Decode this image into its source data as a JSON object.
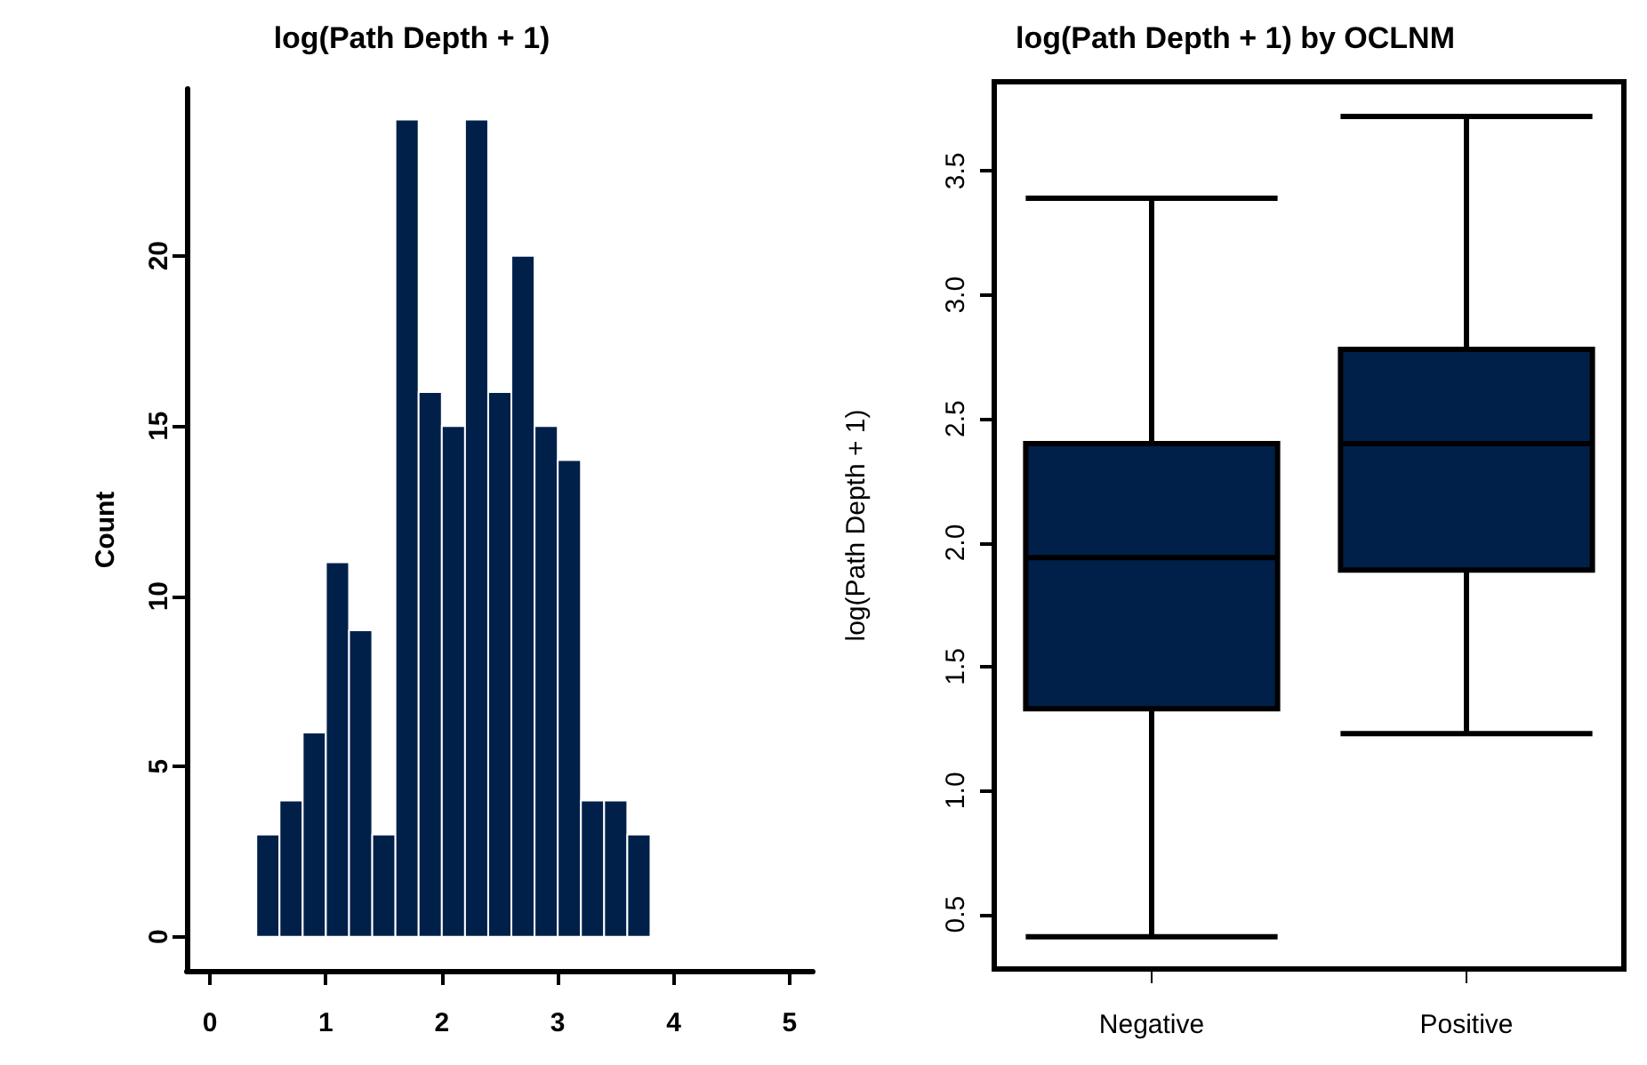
{
  "chart_data": [
    {
      "type": "histogram",
      "title": "log(Path Depth + 1)",
      "ylabel": "Count",
      "color": "#00204a",
      "bins": [
        0.4,
        0.6,
        0.8,
        1.0,
        1.2,
        1.4,
        1.6,
        1.8,
        2.0,
        2.2,
        2.4,
        2.6,
        2.8,
        3.0,
        3.2,
        3.4,
        3.6,
        3.8
      ],
      "values": [
        3,
        4,
        6,
        11,
        9,
        3,
        24,
        16,
        15,
        24,
        16,
        20,
        15,
        14,
        4,
        4,
        3
      ],
      "xlim": [
        -0.2,
        5.2
      ],
      "xticks": [
        0,
        1,
        2,
        3,
        4,
        5
      ],
      "ylim": [
        -1,
        24.9
      ],
      "yticks": [
        0,
        5,
        10,
        15,
        20
      ],
      "grid": false
    },
    {
      "type": "box",
      "title": "log(Path Depth + 1) by OCLNM",
      "ylabel": "log(Path Depth + 1)",
      "color": "#00204a",
      "categories": [
        "Negative",
        "Positive"
      ],
      "boxes": [
        {
          "low": 0.41,
          "q1": 1.33,
          "median": 1.94,
          "q3": 2.4,
          "high": 3.39
        },
        {
          "low": 1.23,
          "q1": 1.89,
          "median": 2.4,
          "q3": 2.78,
          "high": 3.72
        }
      ],
      "ylim": [
        0.28,
        3.86
      ],
      "yticks": [
        {
          "value": 0.5,
          "label": "0.5"
        },
        {
          "value": 1,
          "label": "1.0"
        },
        {
          "value": 1.5,
          "label": "1.5"
        },
        {
          "value": 2,
          "label": "2.0"
        },
        {
          "value": 2.5,
          "label": "2.5"
        },
        {
          "value": 3,
          "label": "3.0"
        },
        {
          "value": 3.5,
          "label": "3.5"
        }
      ],
      "grid": false
    }
  ]
}
